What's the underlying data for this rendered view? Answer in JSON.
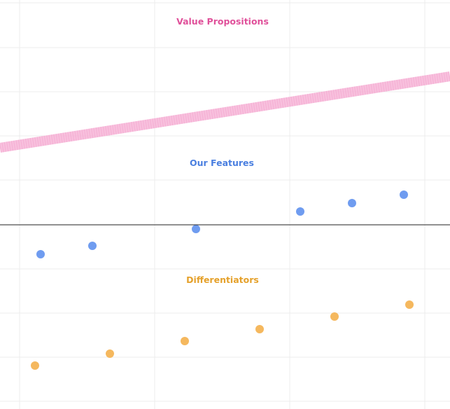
{
  "colors": {
    "background": "#ffffff",
    "grid": "#ececec",
    "divider": "#222222",
    "value_line": "#f7b7d9",
    "value_title": "#e0509a",
    "features_title": "#4a7fe0",
    "features_dot": "#6f9cf0",
    "diff_title": "#e5a12b",
    "diff_dot": "#f5b85e"
  },
  "sections": {
    "value_propositions": {
      "title": "Value Propositions"
    },
    "our_features": {
      "title": "Our Features",
      "marker_count": 6
    },
    "differentiators": {
      "title": "Differentiators",
      "marker_count": 6
    }
  }
}
